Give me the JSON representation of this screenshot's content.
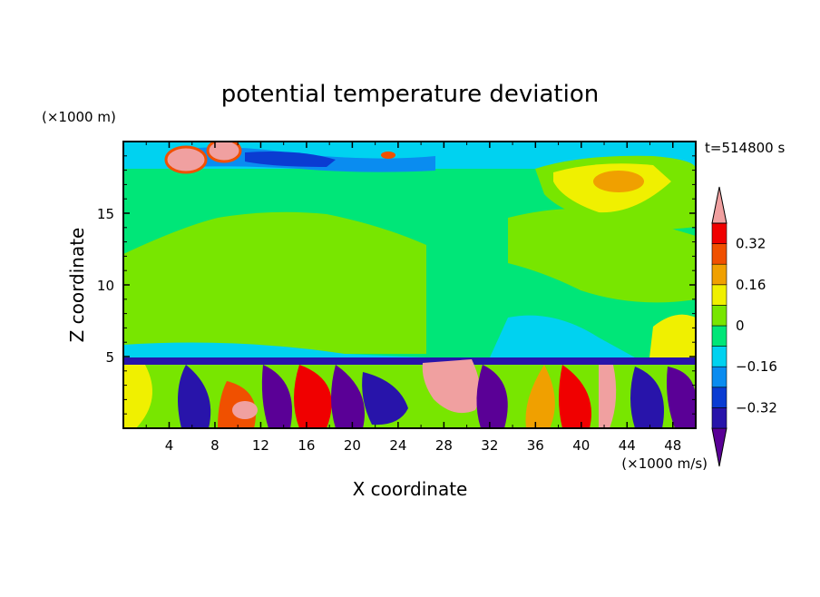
{
  "chart_data": {
    "type": "heatmap",
    "title": "potential temperature deviation",
    "xlabel": "X coordinate",
    "ylabel": "Z coordinate",
    "x_unit": "(×1000 m/s)",
    "y_unit": "(×1000 m)",
    "time_label": "t=514800 s",
    "xlim": [
      0,
      50
    ],
    "ylim": [
      0,
      20
    ],
    "x_ticks": [
      4,
      8,
      12,
      16,
      20,
      24,
      28,
      32,
      36,
      40,
      44,
      48
    ],
    "y_ticks": [
      5,
      10,
      15
    ],
    "colorbar": {
      "levels": [
        -0.4,
        -0.32,
        -0.24,
        -0.16,
        -0.08,
        0,
        0.08,
        0.16,
        0.24,
        0.32,
        0.4
      ],
      "tick_labels": [
        "0.32",
        "0.16",
        "0",
        "−0.16",
        "−0.32"
      ],
      "tick_values": [
        0.32,
        0.16,
        0,
        -0.16,
        -0.32
      ],
      "colors": [
        "#5a0096",
        "#2814aa",
        "#0a3cd2",
        "#0a8cf0",
        "#00d2f0",
        "#00e678",
        "#78e600",
        "#f0f000",
        "#f0a000",
        "#f05000",
        "#f00000",
        "#f0a0a0"
      ],
      "extend": "both"
    },
    "grid": false
  }
}
